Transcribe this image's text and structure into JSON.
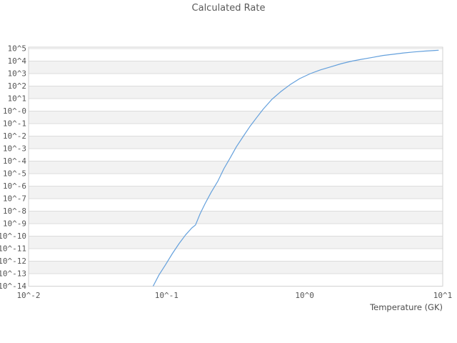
{
  "window": {
    "title": "Calculated Rate"
  },
  "chart_data": {
    "type": "line",
    "title": "Calculated Rate",
    "xlabel": "Temperature (GK)",
    "ylabel": "",
    "x_scale": "log",
    "y_scale": "log",
    "xlim_log10": [
      -2,
      1
    ],
    "ylim_log10": [
      -14,
      5
    ],
    "grid": "horizontal-only",
    "legend": "none",
    "band_colors": [
      "#ffffff",
      "#f2f2f2"
    ],
    "gridline_color": "#dcdcdc",
    "border_color": "#d2d2d2",
    "tick_label_color": "#555555",
    "title_color": "#595959",
    "line_color": "#64a0dc",
    "x_ticks": [
      {
        "log10": -2,
        "label": "10^-2"
      },
      {
        "log10": -1,
        "label": "10^-1"
      },
      {
        "log10": 0,
        "label": "10^0"
      },
      {
        "log10": 1,
        "label": "10^1"
      }
    ],
    "y_ticks": [
      {
        "log10": 5,
        "label": "10^5"
      },
      {
        "log10": 4,
        "label": "10^4"
      },
      {
        "log10": 3,
        "label": "10^3"
      },
      {
        "log10": 2,
        "label": "10^2"
      },
      {
        "log10": 1,
        "label": "10^1"
      },
      {
        "log10": 0,
        "label": "10^-0"
      },
      {
        "log10": -1,
        "label": "10^-1"
      },
      {
        "log10": -2,
        "label": "10^-2"
      },
      {
        "log10": -3,
        "label": "10^-3"
      },
      {
        "log10": -4,
        "label": "10^-4"
      },
      {
        "log10": -5,
        "label": "10^-5"
      },
      {
        "log10": -6,
        "label": "10^-6"
      },
      {
        "log10": -7,
        "label": "10^-7"
      },
      {
        "log10": -8,
        "label": "10^-8"
      },
      {
        "log10": -9,
        "label": "10^-9"
      },
      {
        "log10": -10,
        "label": "10^-10"
      },
      {
        "log10": -11,
        "label": "10^-11"
      },
      {
        "log10": -12,
        "label": "10^-12"
      },
      {
        "log10": -13,
        "label": "10^-13"
      },
      {
        "log10": -14,
        "label": "10^-14"
      }
    ],
    "series": [
      {
        "name": "Calculated Rate",
        "points_T_GK_vs_log10rate": [
          [
            0.079,
            -14.1
          ],
          [
            0.088,
            -13.1
          ],
          [
            0.098,
            -12.3
          ],
          [
            0.11,
            -11.4
          ],
          [
            0.123,
            -10.6
          ],
          [
            0.137,
            -9.9
          ],
          [
            0.152,
            -9.35
          ],
          [
            0.162,
            -9.1
          ],
          [
            0.175,
            -8.2
          ],
          [
            0.19,
            -7.4
          ],
          [
            0.21,
            -6.5
          ],
          [
            0.235,
            -5.6
          ],
          [
            0.26,
            -4.6
          ],
          [
            0.29,
            -3.7
          ],
          [
            0.32,
            -2.85
          ],
          [
            0.36,
            -2.0
          ],
          [
            0.4,
            -1.25
          ],
          [
            0.45,
            -0.5
          ],
          [
            0.5,
            0.15
          ],
          [
            0.58,
            0.95
          ],
          [
            0.67,
            1.55
          ],
          [
            0.78,
            2.1
          ],
          [
            0.92,
            2.6
          ],
          [
            1.1,
            3.0
          ],
          [
            1.3,
            3.3
          ],
          [
            1.55,
            3.55
          ],
          [
            1.85,
            3.8
          ],
          [
            2.2,
            4.0
          ],
          [
            2.6,
            4.15
          ],
          [
            3.1,
            4.3
          ],
          [
            3.7,
            4.45
          ],
          [
            4.4,
            4.55
          ],
          [
            5.2,
            4.65
          ],
          [
            6.2,
            4.73
          ],
          [
            7.4,
            4.8
          ],
          [
            8.8,
            4.85
          ],
          [
            9.3,
            4.87
          ]
        ]
      }
    ]
  }
}
